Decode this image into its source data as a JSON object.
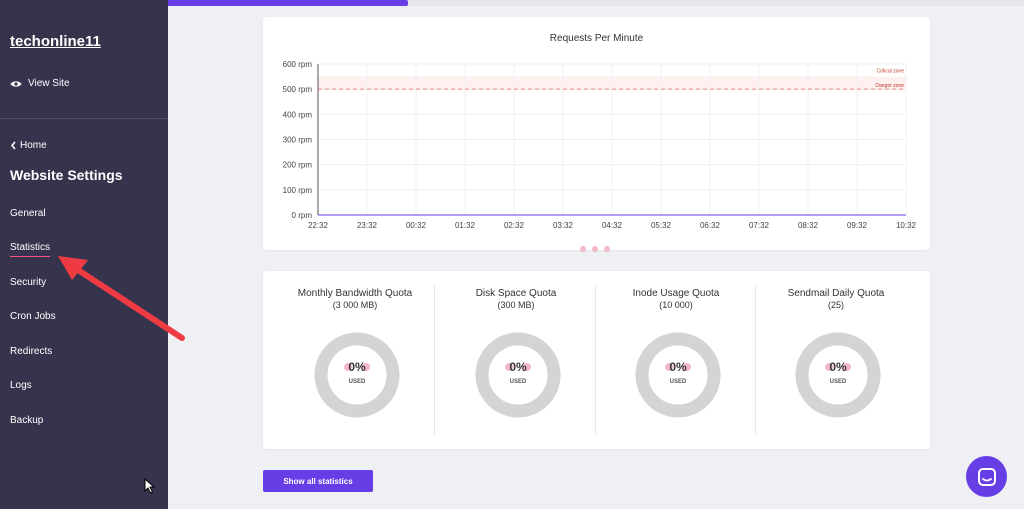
{
  "top_progress": {
    "percent": 28
  },
  "sidebar": {
    "site_name": "techonline11",
    "view_site_label": "View Site",
    "home_label": "Home",
    "section_title": "Website Settings",
    "items": [
      {
        "label": "General"
      },
      {
        "label": "Statistics",
        "active": true
      },
      {
        "label": "Security"
      },
      {
        "label": "Cron Jobs"
      },
      {
        "label": "Redirects"
      },
      {
        "label": "Logs"
      },
      {
        "label": "Backup"
      }
    ]
  },
  "chart_data": {
    "type": "line",
    "title": "Requests Per Minute",
    "xlabel": "",
    "ylabel": "",
    "categories": [
      "22:32",
      "23:32",
      "00:32",
      "01:32",
      "02:32",
      "03:32",
      "04:32",
      "05:32",
      "06:32",
      "07:32",
      "08:32",
      "09:32",
      "10:32"
    ],
    "y_ticks": [
      "0 rpm",
      "100 rpm",
      "200 rpm",
      "300 rpm",
      "400 rpm",
      "500 rpm",
      "600 rpm"
    ],
    "ylim": [
      0,
      600
    ],
    "series": [
      {
        "values": [
          0,
          0,
          0,
          0,
          0,
          0,
          0,
          0,
          0,
          0,
          0,
          0,
          0
        ]
      }
    ],
    "zones": [
      {
        "label": "Critical zone",
        "from": 500,
        "to": 550
      },
      {
        "label": "Danger zone",
        "value": 500
      }
    ],
    "grid": true
  },
  "quotas": [
    {
      "title": "Monthly Bandwidth Quota",
      "sub": "(3 000 MB)",
      "percent_label": "0%",
      "used_label": "USED",
      "value": 0
    },
    {
      "title": "Disk Space Quota",
      "sub": "(300 MB)",
      "percent_label": "0%",
      "used_label": "USED",
      "value": 0
    },
    {
      "title": "Inode Usage Quota",
      "sub": "(10 000)",
      "percent_label": "0%",
      "used_label": "USED",
      "value": 0
    },
    {
      "title": "Sendmail Daily Quota",
      "sub": "(25)",
      "percent_label": "0%",
      "used_label": "USED",
      "value": 0
    }
  ],
  "show_all_label": "Show all statistics",
  "colors": {
    "accent": "#673de6",
    "sidebar_bg": "#36344d",
    "danger": "#fc5185",
    "annotation": "#ee3b43"
  },
  "icons": {
    "view_site": "eye-icon",
    "home": "chevron-left-icon",
    "chat": "chat-icon",
    "cursor": "mouse-cursor-icon",
    "annotation": "red-arrow-icon"
  }
}
